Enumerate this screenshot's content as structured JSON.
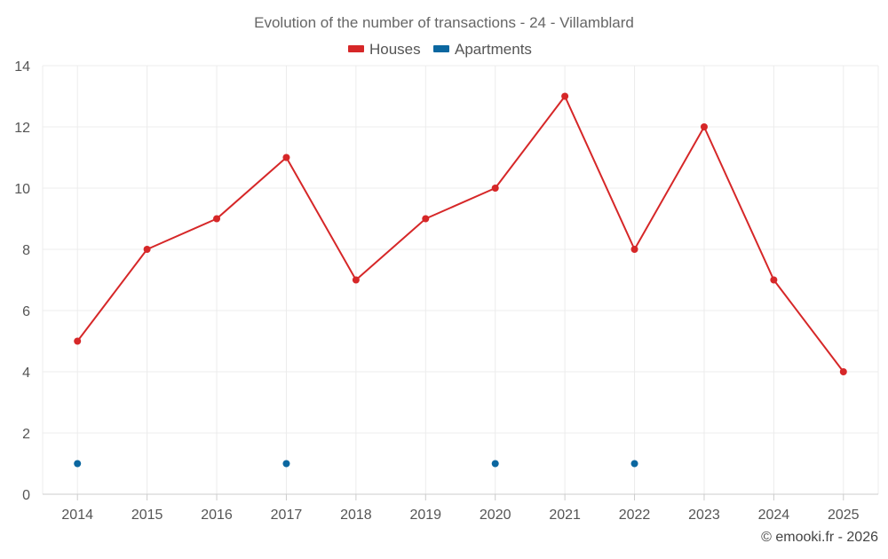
{
  "chart_data": {
    "type": "line",
    "title": "Evolution of the number of transactions - 24 - Villamblard",
    "categories": [
      "2014",
      "2015",
      "2016",
      "2017",
      "2018",
      "2019",
      "2020",
      "2021",
      "2022",
      "2023",
      "2024",
      "2025"
    ],
    "series": [
      {
        "name": "Houses",
        "color": "#d62728",
        "values": [
          5,
          8,
          9,
          11,
          7,
          9,
          10,
          13,
          8,
          12,
          7,
          4
        ],
        "line": true
      },
      {
        "name": "Apartments",
        "color": "#0b67a0",
        "values": [
          1,
          null,
          null,
          1,
          null,
          null,
          1,
          null,
          1,
          null,
          null,
          null
        ],
        "line": false
      }
    ],
    "xlabel": "",
    "ylabel": "",
    "ylim": [
      0,
      14
    ],
    "yticks": [
      "0",
      "2",
      "4",
      "6",
      "8",
      "10",
      "12",
      "14"
    ],
    "grid": true,
    "legend": "top-center"
  },
  "credit": "© emooki.fr - 2026"
}
